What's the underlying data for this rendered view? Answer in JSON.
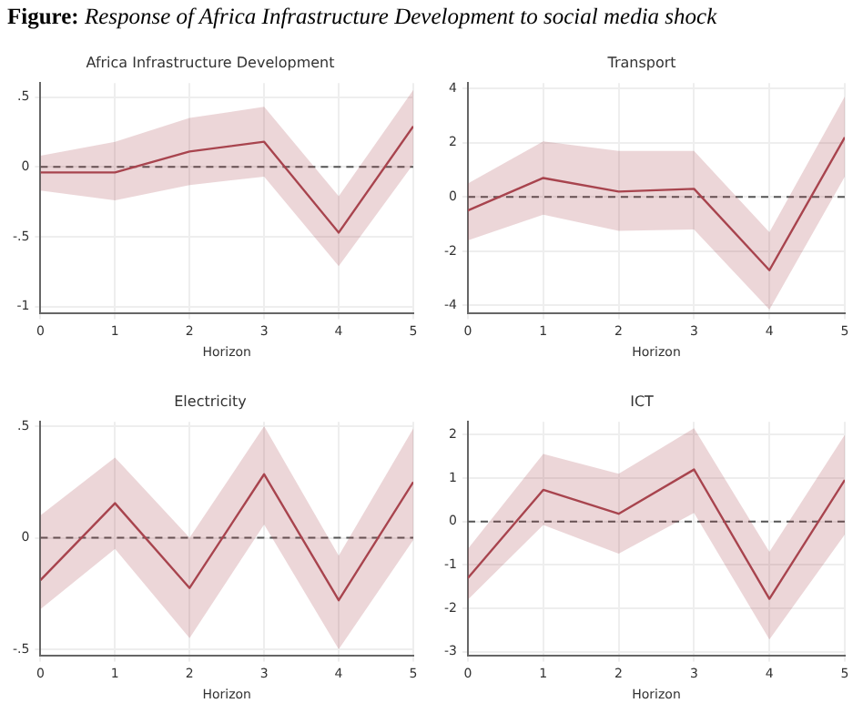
{
  "chart_data": [
    {
      "type": "line",
      "title": "Africa Infrastructure Development",
      "xlabel": "Horizon",
      "annotations": [
        "Figure: Response of Africa Infrastructure Development to social media shock"
      ],
      "x": [
        0,
        1,
        2,
        3,
        4,
        5
      ],
      "xlim": [
        0,
        5
      ],
      "xticks": [
        0,
        1,
        2,
        3,
        4,
        5
      ],
      "ylim": [
        -1.05,
        0.6
      ],
      "yticks": [
        {
          "value": -1,
          "label": "-1"
        },
        {
          "value": -0.5,
          "label": "-.5"
        },
        {
          "value": 0,
          "label": "0"
        },
        {
          "value": 0.5,
          "label": ".5"
        }
      ],
      "grid": true,
      "marker": "none",
      "line_style": "solid",
      "ref_lines": [
        {
          "axis": "y",
          "value": 0,
          "color": "#555555",
          "line_style": "dashed"
        }
      ],
      "series": [
        {
          "color": "#a8454f",
          "values": [
            -0.04,
            -0.04,
            0.11,
            0.18,
            -0.47,
            0.29
          ],
          "lower": [
            -0.17,
            -0.24,
            -0.13,
            -0.07,
            -0.71,
            0.02
          ],
          "upper": [
            0.08,
            0.18,
            0.35,
            0.43,
            -0.21,
            0.55
          ]
        }
      ]
    },
    {
      "type": "line",
      "title": "Transport",
      "xlabel": "Horizon",
      "x": [
        0,
        1,
        2,
        3,
        4,
        5
      ],
      "xlim": [
        0,
        5
      ],
      "xticks": [
        0,
        1,
        2,
        3,
        4,
        5
      ],
      "ylim": [
        -4.3,
        4.2
      ],
      "yticks": [
        -4,
        -2,
        0,
        2,
        4
      ],
      "grid": true,
      "marker": "none",
      "line_style": "solid",
      "ref_lines": [
        {
          "axis": "y",
          "value": 0,
          "color": "#555555",
          "line_style": "dashed"
        }
      ],
      "series": [
        {
          "color": "#a8454f",
          "values": [
            -0.5,
            0.7,
            0.2,
            0.3,
            -2.7,
            2.2
          ],
          "lower": [
            -1.6,
            -0.65,
            -1.25,
            -1.2,
            -4.15,
            0.75
          ],
          "upper": [
            0.5,
            2.05,
            1.7,
            1.7,
            -1.3,
            3.7
          ]
        }
      ]
    },
    {
      "type": "line",
      "title": "Electricity",
      "xlabel": "Horizon",
      "x": [
        0,
        1,
        2,
        3,
        4,
        5
      ],
      "xlim": [
        0,
        5
      ],
      "xticks": [
        0,
        1,
        2,
        3,
        4,
        5
      ],
      "ylim": [
        -0.53,
        0.52
      ],
      "yticks": [
        {
          "value": -0.5,
          "label": "-.5"
        },
        {
          "value": 0,
          "label": "0"
        },
        {
          "value": 0.5,
          "label": ".5"
        }
      ],
      "grid": true,
      "marker": "none",
      "line_style": "solid",
      "ref_lines": [
        {
          "axis": "y",
          "value": 0,
          "color": "#555555",
          "line_style": "dashed"
        }
      ],
      "series": [
        {
          "color": "#a8454f",
          "values": [
            -0.19,
            0.155,
            -0.225,
            0.285,
            -0.28,
            0.25
          ],
          "lower": [
            -0.32,
            -0.05,
            -0.45,
            0.06,
            -0.5,
            -0.01
          ],
          "upper": [
            0.1,
            0.36,
            0,
            0.5,
            -0.08,
            0.49
          ]
        }
      ]
    },
    {
      "type": "line",
      "title": "ICT",
      "xlabel": "Horizon",
      "x": [
        0,
        1,
        2,
        3,
        4,
        5
      ],
      "xlim": [
        0,
        5
      ],
      "xticks": [
        0,
        1,
        2,
        3,
        4,
        5
      ],
      "ylim": [
        -3.1,
        2.3
      ],
      "yticks": [
        -3,
        -2,
        -1,
        0,
        1,
        2
      ],
      "grid": true,
      "marker": "none",
      "line_style": "solid",
      "ref_lines": [
        {
          "axis": "y",
          "value": 0,
          "color": "#555555",
          "line_style": "dashed"
        }
      ],
      "series": [
        {
          "color": "#a8454f",
          "values": [
            -1.3,
            0.73,
            0.18,
            1.2,
            -1.78,
            0.96
          ],
          "lower": [
            -1.8,
            -0.08,
            -0.74,
            0.2,
            -2.72,
            -0.3
          ],
          "upper": [
            -0.63,
            1.56,
            1.1,
            2.15,
            -0.7,
            2.0
          ]
        }
      ]
    }
  ]
}
